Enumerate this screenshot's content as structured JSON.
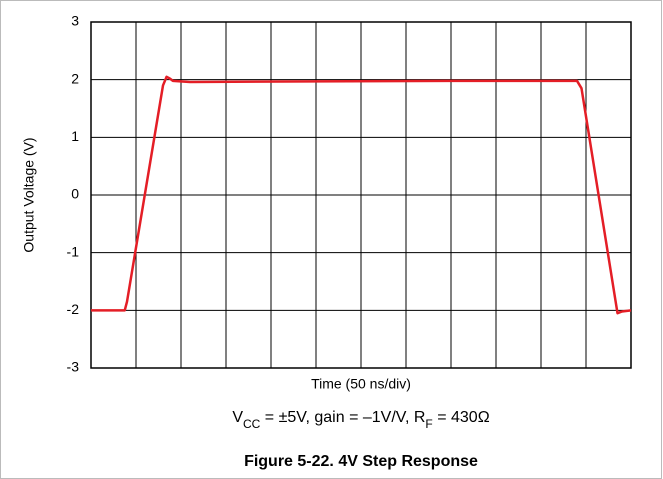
{
  "chart_data": {
    "type": "line",
    "title": "Figure 5-22. 4V Step Response",
    "subtitle": [
      "V",
      "CC",
      " = ±5V, gain = –1V/V, R",
      "F",
      " = 430Ω"
    ],
    "xlabel": "Time (50 ns/div)",
    "ylabel": "Output Voltage (V)",
    "x": [
      0,
      0.75,
      0.8,
      1.6,
      1.68,
      1.75,
      1.82,
      2.2,
      5,
      8,
      10.8,
      10.9,
      11.7,
      11.8,
      12
    ],
    "series": [
      {
        "color": "#e41e26",
        "values": [
          -2,
          -2,
          -1.85,
          1.9,
          2.05,
          2.02,
          1.98,
          1.96,
          1.97,
          1.98,
          1.98,
          1.85,
          -2.05,
          -2.02,
          -2
        ]
      }
    ],
    "xlim": [
      0,
      12
    ],
    "xticks": [
      0,
      1,
      2,
      3,
      4,
      5,
      6,
      7,
      8,
      9,
      10,
      11,
      12
    ],
    "ylim": [
      -3,
      3
    ],
    "yticks": [
      3,
      2,
      1,
      0,
      -1,
      -2,
      -3
    ],
    "grid": true
  }
}
